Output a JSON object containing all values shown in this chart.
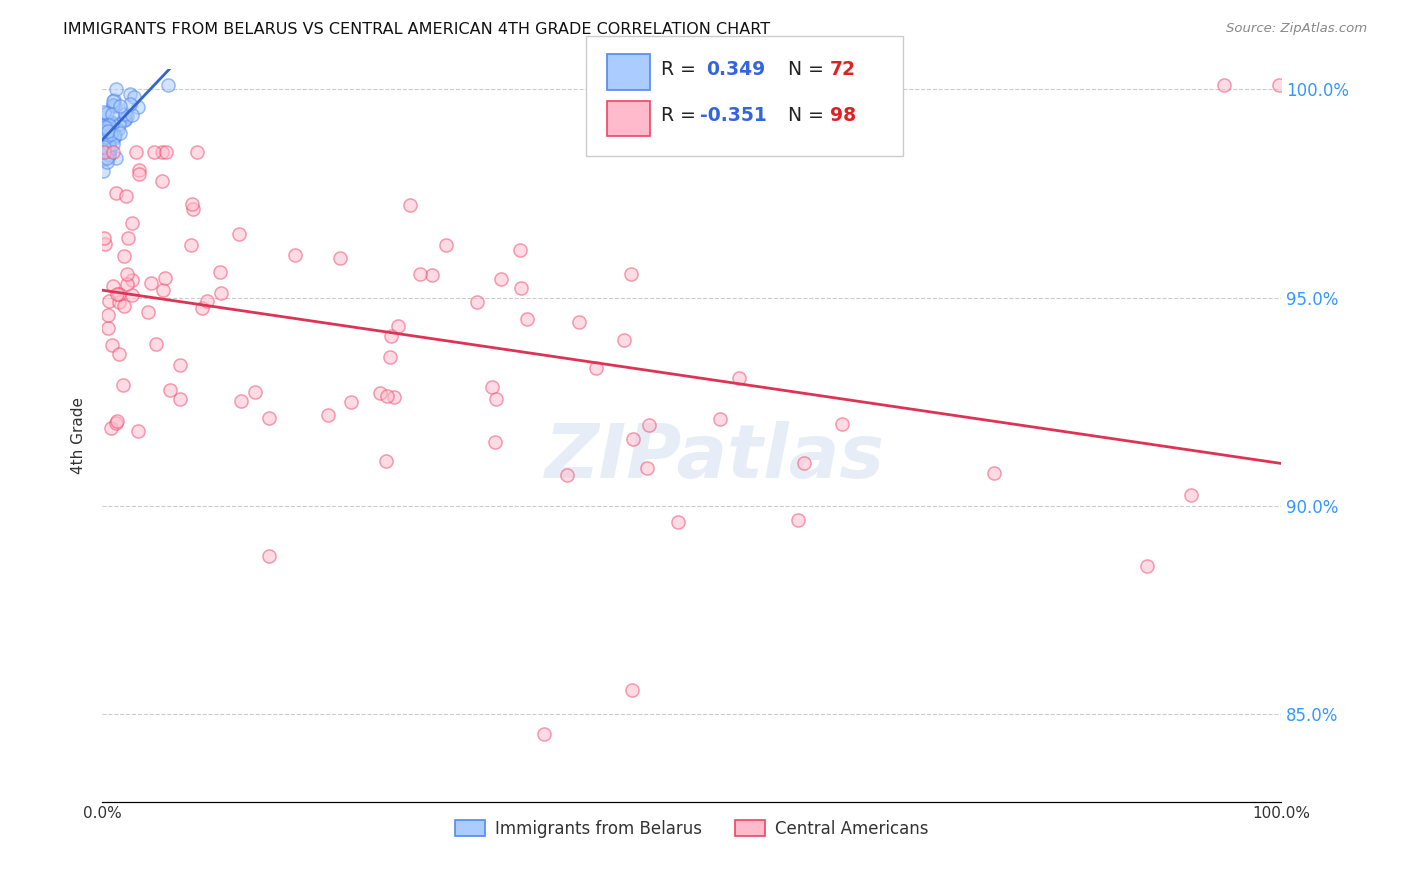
{
  "title": "IMMIGRANTS FROM BELARUS VS CENTRAL AMERICAN 4TH GRADE CORRELATION CHART",
  "source": "Source: ZipAtlas.com",
  "ylabel": "4th Grade",
  "xlim": [
    0.0,
    1.0
  ],
  "ylim": [
    0.829,
    1.005
  ],
  "yticks": [
    0.85,
    0.9,
    0.95,
    1.0
  ],
  "ytick_labels": [
    "85.0%",
    "90.0%",
    "95.0%",
    "100.0%"
  ],
  "xtick_labels": [
    "0.0%",
    "",
    "",
    "",
    "",
    "100.0%"
  ],
  "blue_color": "#7aadff",
  "blue_edge": "#5588ee",
  "blue_line_color": "#3366cc",
  "pink_color": "#ff8899",
  "pink_edge": "#ee4466",
  "pink_line_color": "#dd3355",
  "watermark": "ZIPatlas",
  "grid_color": "#cccccc"
}
